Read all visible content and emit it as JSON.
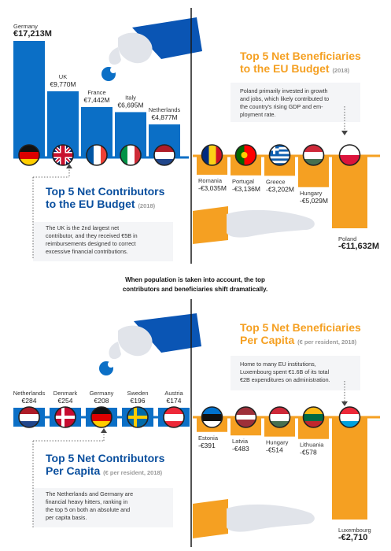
{
  "colors": {
    "blue": "#0b6fc6",
    "orange": "#f5a022",
    "blue_dark": "#0a4f9e",
    "skin": "#e2e5ea"
  },
  "middle_text": [
    "When population is taken into account, the top",
    "contributors and beneficiaries shift dramatically."
  ],
  "chart_data": [
    {
      "type": "bar",
      "title": "Top 5 Net Contributors",
      "title_line2": "to the EU Budget",
      "subtitle": "(2018)",
      "note": [
        "The UK is the 2nd largest net",
        "contributor, and they received €5B in",
        "reimbursements designed to correct",
        "excessive financial contributions."
      ],
      "categories": [
        "Germany",
        "UK",
        "France",
        "Italy",
        "Netherlands"
      ],
      "labels": [
        "€17,213M",
        "€9,770M",
        "€7,442M",
        "€6,695M",
        "€4,877M"
      ],
      "values": [
        17213,
        9770,
        7442,
        6695,
        4877
      ],
      "unit": "€ million",
      "flags": [
        "germany-flag",
        "uk-flag",
        "france-flag",
        "italy-flag",
        "netherlands-flag"
      ]
    },
    {
      "type": "bar",
      "title": "Top 5 Net Beneficiaries",
      "title_line2": "to the EU Budget",
      "subtitle": "(2018)",
      "note": [
        "Poland primarily invested in growth",
        "and jobs, which likely contributed to",
        "the country's rising GDP and em-",
        "ployment rate."
      ],
      "categories": [
        "Romania",
        "Portugal",
        "Greece",
        "Hungary",
        "Poland"
      ],
      "labels": [
        "-€3,035M",
        "-€3,136M",
        "-€3,202M",
        "-€5,029M",
        "-€11,632M"
      ],
      "values": [
        -3035,
        -3136,
        -3202,
        -5029,
        -11632
      ],
      "unit": "€ million",
      "flags": [
        "romania-flag",
        "portugal-flag",
        "greece-flag",
        "hungary-flag",
        "poland-flag"
      ]
    },
    {
      "type": "bar",
      "title": "Top 5 Net Contributors",
      "title_line2": "Per Capita",
      "subtitle": "(€ per resident, 2018)",
      "note": [
        "The Netherlands and Germany are",
        "financial heavy hitters, ranking in",
        "the top 5 on both an absolute and",
        "per capita basis."
      ],
      "categories": [
        "Netherlands",
        "Denmark",
        "Germany",
        "Sweden",
        "Austria"
      ],
      "labels": [
        "€284",
        "€254",
        "€208",
        "€196",
        "€174"
      ],
      "values": [
        284,
        254,
        208,
        196,
        174
      ],
      "unit": "€ per resident",
      "flags": [
        "netherlands-flag",
        "denmark-flag",
        "germany-flag",
        "sweden-flag",
        "austria-flag"
      ]
    },
    {
      "type": "bar",
      "title": "Top 5 Net Beneficiaries",
      "title_line2": "Per Capita",
      "subtitle": "(€ per resident, 2018)",
      "note": [
        "Home to many EU institutions,",
        "Luxembourg spent €1.6B of its total",
        "€2B expenditures on administration."
      ],
      "categories": [
        "Estonia",
        "Latvia",
        "Hungary",
        "Lithuania",
        "Luxembourg"
      ],
      "labels": [
        "-€391",
        "-€483",
        "-€514",
        "-€578",
        "-€2,710"
      ],
      "values": [
        -391,
        -483,
        -514,
        -578,
        -2710
      ],
      "unit": "€ per resident",
      "flags": [
        "estonia-flag",
        "latvia-flag",
        "hungary-flag",
        "lithuania-flag",
        "luxembourg-flag"
      ]
    }
  ]
}
